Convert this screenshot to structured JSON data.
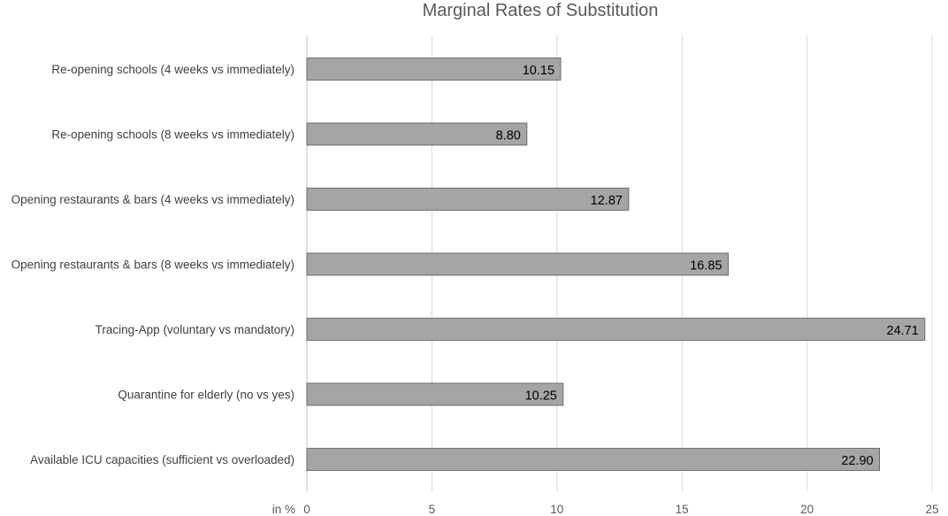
{
  "chart_data": {
    "type": "bar",
    "orientation": "horizontal",
    "title": "Marginal Rates of Substitution",
    "xlabel": "in %",
    "ylabel": "",
    "xlim": [
      0,
      25
    ],
    "xticks": [
      "0",
      "5",
      "10",
      "15",
      "20",
      "25"
    ],
    "grid": "vertical",
    "legend": "none",
    "categories": [
      "Re-opening schools (4 weeks vs immediately)",
      "Re-opening schools (8 weeks vs immediately)",
      "Opening restaurants & bars (4 weeks vs immediately)",
      "Opening restaurants & bars (8 weeks vs immediately)",
      "Tracing-App (voluntary vs mandatory)",
      "Quarantine for elderly (no vs yes)",
      "Available ICU capacities (sufficient vs overloaded)"
    ],
    "values": [
      10.15,
      8.8,
      12.87,
      16.85,
      24.71,
      10.25,
      22.9
    ],
    "data_labels": [
      "10.15",
      "8.80",
      "12.87",
      "16.85",
      "24.71",
      "10.25",
      "22.90"
    ],
    "colors": {
      "bar": "#a5a5a5",
      "bar_edge": "#595959",
      "grid": "#d9d9d9",
      "axis": "#bfbfbf"
    }
  }
}
